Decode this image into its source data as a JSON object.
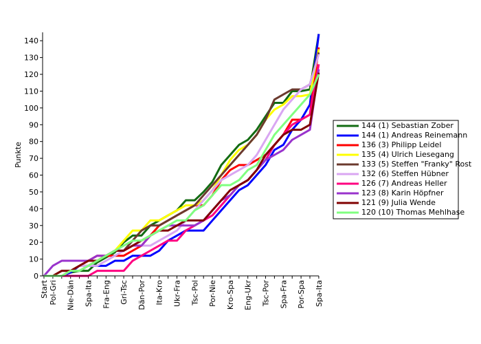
{
  "chart_data": {
    "type": "line",
    "y_label": "Punkte",
    "categories": [
      "Start",
      "Pol-Gri",
      null,
      "Nie-Dän",
      null,
      "Spa-Ita",
      null,
      "Fra-Eng",
      null,
      "Gri-Tsc",
      null,
      "Dän-Por",
      null,
      "Ita-Kro",
      null,
      "Ukr-Fra",
      null,
      "Tsc-Pol",
      null,
      "Por-Nie",
      null,
      "Kro-Spa",
      null,
      "Eng-Ukr",
      null,
      "Tsc-Por",
      null,
      "Spa-Fra",
      null,
      "Por-Spa",
      null,
      "Spa-Ita"
    ],
    "ylim": [
      0,
      145
    ],
    "yticks": [
      0,
      10,
      20,
      30,
      40,
      50,
      60,
      70,
      80,
      90,
      100,
      110,
      120,
      130,
      140
    ],
    "series": [
      {
        "name": "144 (1) Sebastian Zober",
        "color": "#126b12",
        "values": [
          0,
          0,
          0,
          2,
          3,
          3,
          8,
          11,
          14,
          20,
          24,
          24,
          30,
          33,
          36,
          39,
          45,
          45,
          50,
          56,
          66,
          72,
          78,
          81,
          87,
          95,
          103,
          103,
          110,
          110,
          111,
          144
        ]
      },
      {
        "name": "144 (1) Andreas Reinemann",
        "color": "#0000ff",
        "values": [
          0,
          0,
          0,
          2,
          6,
          6,
          6,
          6,
          9,
          9,
          12,
          12,
          12,
          15,
          21,
          24,
          27,
          27,
          27,
          33,
          39,
          45,
          51,
          54,
          60,
          66,
          75,
          78,
          87,
          93,
          102,
          144
        ]
      },
      {
        "name": "136 (3) Philipp Leidel",
        "color": "#ff0000",
        "values": [
          0,
          0,
          0,
          3,
          6,
          9,
          12,
          12,
          12,
          12,
          15,
          18,
          24,
          30,
          33,
          36,
          39,
          42,
          42,
          48,
          57,
          63,
          66,
          66,
          69,
          72,
          78,
          84,
          93,
          93,
          96,
          136
        ]
      },
      {
        "name": "135 (4) Ulrich Liesegang",
        "color": "#ffff00",
        "values": [
          0,
          0,
          0,
          3,
          6,
          6,
          9,
          12,
          15,
          21,
          27,
          27,
          33,
          33,
          36,
          39,
          42,
          42,
          45,
          51,
          60,
          69,
          75,
          78,
          84,
          93,
          99,
          102,
          107,
          107,
          108,
          135
        ]
      },
      {
        "name": "133 (5) Steffen \"Franky\" Rost",
        "color": "#6b3a2e",
        "values": [
          0,
          0,
          3,
          3,
          3,
          6,
          9,
          12,
          15,
          15,
          21,
          27,
          30,
          30,
          33,
          36,
          39,
          42,
          48,
          54,
          60,
          66,
          72,
          78,
          84,
          93,
          105,
          108,
          111,
          111,
          114,
          133
        ]
      },
      {
        "name": "132 (6) Steffen Hübner",
        "color": "#d9a6f2",
        "values": [
          0,
          0,
          0,
          3,
          6,
          6,
          6,
          9,
          12,
          15,
          18,
          18,
          18,
          21,
          24,
          27,
          33,
          39,
          45,
          51,
          57,
          60,
          63,
          66,
          72,
          81,
          90,
          99,
          105,
          111,
          114,
          132
        ]
      },
      {
        "name": "126 (7) Andreas Heller",
        "color": "#ff0080",
        "values": [
          0,
          0,
          0,
          0,
          0,
          0,
          3,
          3,
          3,
          3,
          9,
          12,
          15,
          18,
          21,
          21,
          27,
          30,
          33,
          36,
          42,
          48,
          54,
          57,
          63,
          69,
          78,
          84,
          90,
          93,
          96,
          126
        ]
      },
      {
        "name": "123 (8) Karin Höpfner",
        "color": "#9933cc",
        "values": [
          0,
          6,
          9,
          9,
          9,
          9,
          12,
          12,
          15,
          15,
          18,
          18,
          24,
          27,
          30,
          30,
          30,
          30,
          33,
          39,
          45,
          48,
          54,
          57,
          63,
          69,
          72,
          75,
          81,
          84,
          87,
          123
        ]
      },
      {
        "name": "121 (9) Julia Wende",
        "color": "#800000",
        "values": [
          0,
          0,
          3,
          3,
          6,
          9,
          9,
          12,
          15,
          15,
          18,
          21,
          24,
          27,
          27,
          30,
          33,
          33,
          33,
          39,
          45,
          51,
          54,
          57,
          63,
          72,
          78,
          84,
          87,
          87,
          90,
          121
        ]
      },
      {
        "name": "120 (10) Thomas Mehlhase",
        "color": "#80ff80",
        "values": [
          0,
          0,
          0,
          3,
          3,
          6,
          9,
          12,
          15,
          18,
          21,
          21,
          24,
          27,
          30,
          33,
          33,
          39,
          42,
          48,
          54,
          54,
          57,
          63,
          66,
          75,
          84,
          90,
          96,
          102,
          108,
          120
        ]
      }
    ]
  }
}
